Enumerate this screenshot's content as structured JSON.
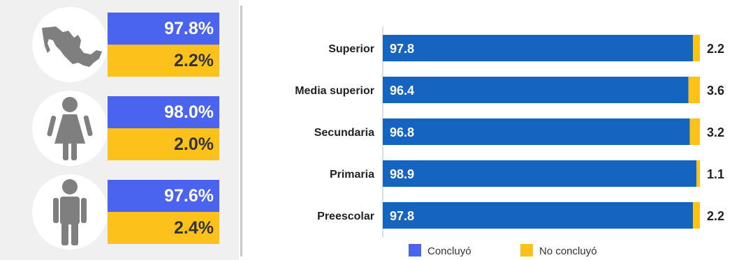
{
  "summary": [
    {
      "icon": "mexico-map-icon",
      "concluyo": "97.8%",
      "no_concluyo": "2.2%"
    },
    {
      "icon": "female-person-icon",
      "concluyo": "98.0%",
      "no_concluyo": "2.0%"
    },
    {
      "icon": "male-person-icon",
      "concluyo": "97.6%",
      "no_concluyo": "2.4%"
    }
  ],
  "colors": {
    "concluyo": "#1565c0",
    "no_concluyo": "#fcc21b",
    "summary_blue": "#4a64f0",
    "icon_gray": "#7f7f7f"
  },
  "chart_data": {
    "type": "bar",
    "orientation": "horizontal",
    "stacked": true,
    "categories": [
      "Superior",
      "Media superior",
      "Secundaria",
      "Primaria",
      "Preescolar"
    ],
    "series": [
      {
        "name": "Concluyó",
        "values": [
          97.8,
          96.4,
          96.8,
          98.9,
          97.8
        ]
      },
      {
        "name": "No concluyó",
        "values": [
          2.2,
          3.6,
          3.2,
          1.1,
          2.2
        ]
      }
    ],
    "xlim": [
      0,
      100
    ],
    "grid": false,
    "legend": "bottom"
  }
}
